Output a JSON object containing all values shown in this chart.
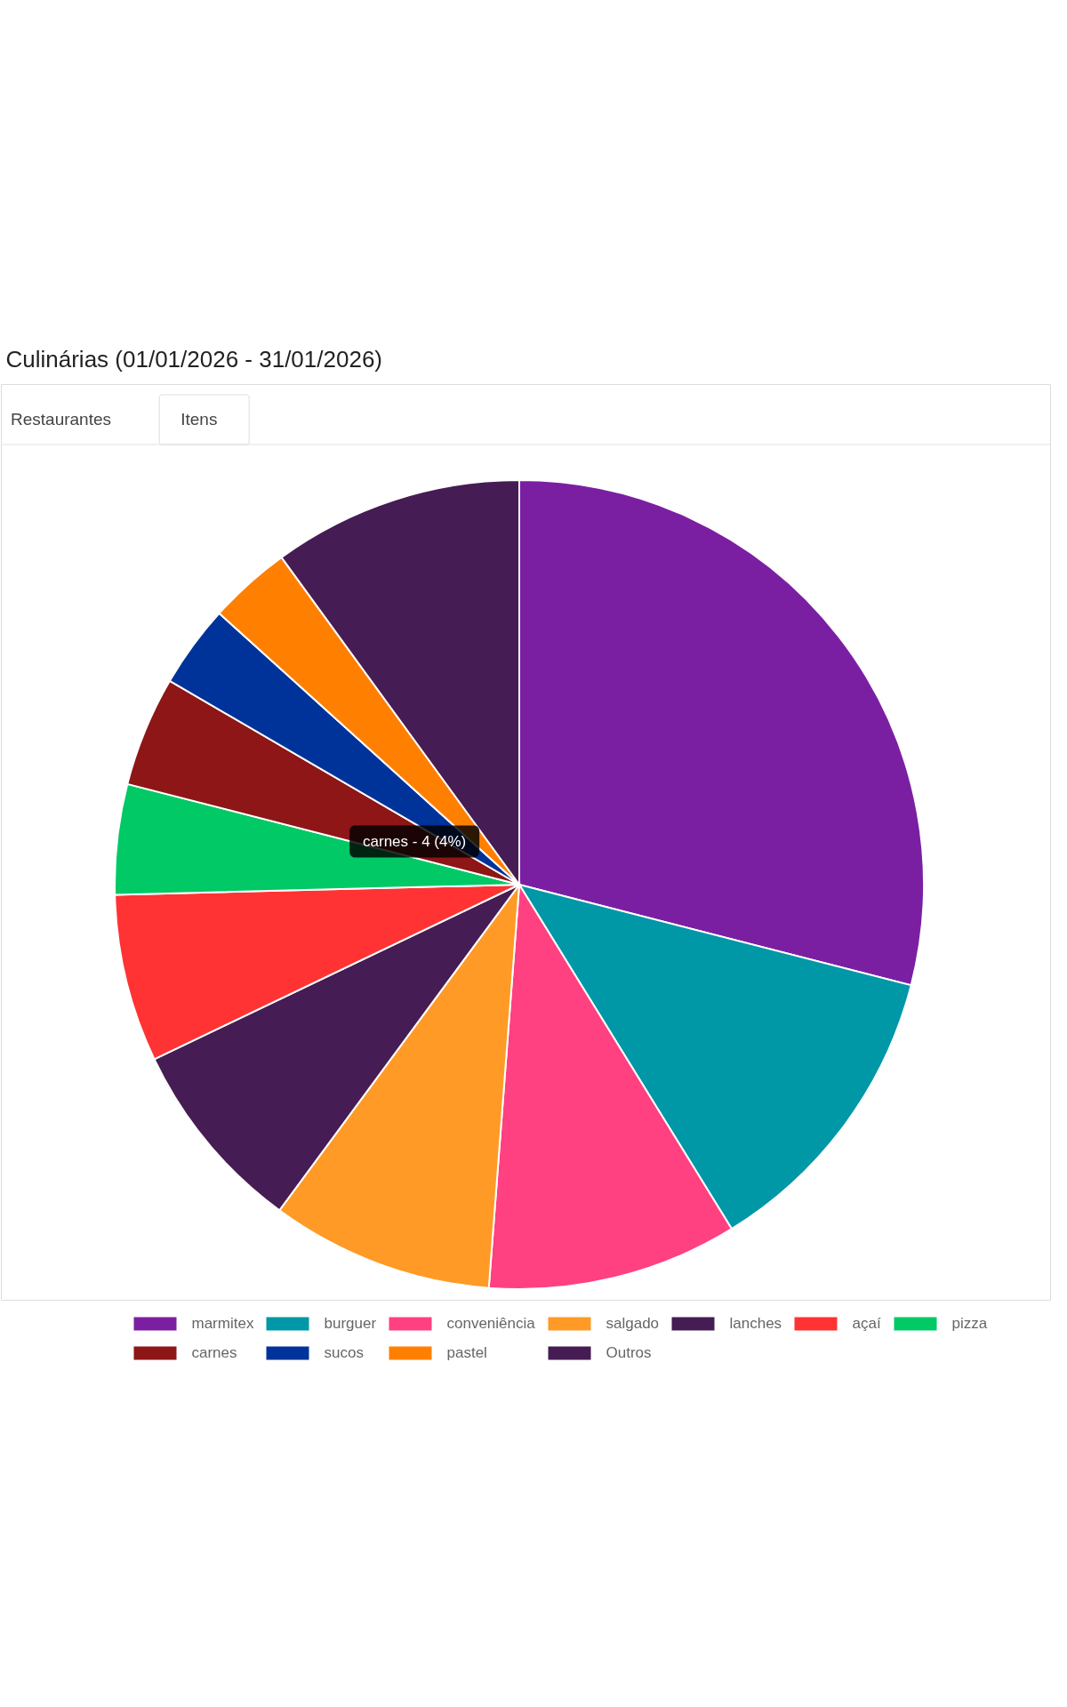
{
  "chart_data": {
    "type": "pie",
    "title": "Culinárias (01/01/2026 - 31/01/2026)",
    "categories": [
      "marmitex",
      "burguer",
      "conveniência",
      "salgado",
      "lanches",
      "açaí",
      "pizza",
      "carnes",
      "sucos",
      "pastel",
      "Outros"
    ],
    "values": [
      29.0,
      12.2,
      10.0,
      8.9,
      7.8,
      6.7,
      4.4,
      4.4,
      3.3,
      3.3,
      10.0
    ],
    "colors": [
      "#7b1fa2",
      "#0097a7",
      "#ff4081",
      "#ff9a26",
      "#451c53",
      "#ff3333",
      "#00c965",
      "#8e1616",
      "#003399",
      "#ff8000",
      "#451c53"
    ],
    "legend": "bottom",
    "annotations": [
      "Restaurantes",
      "Itens",
      {
        "text": "carnes - 4 (4%)",
        "x": "carnes"
      }
    ]
  }
}
